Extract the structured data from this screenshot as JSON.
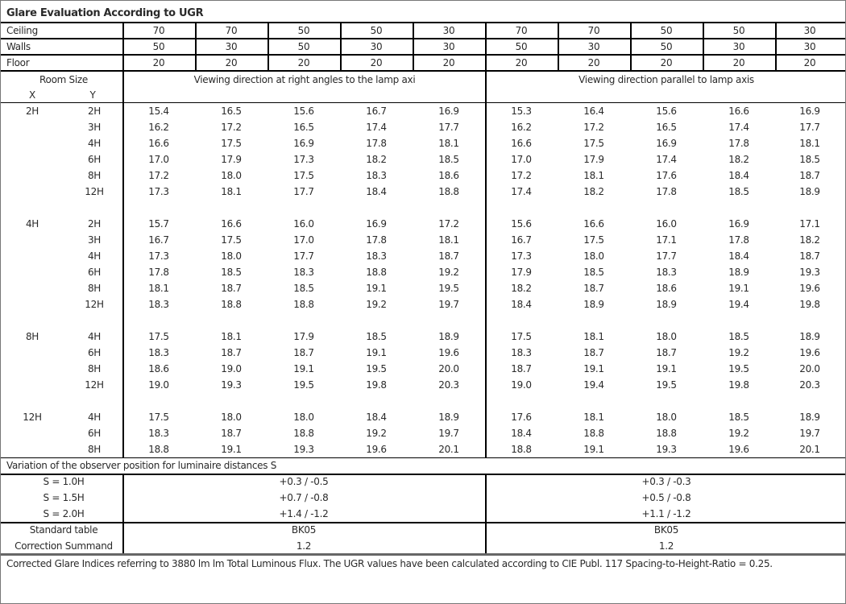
{
  "title": "Glare Evaluation According to UGR",
  "reflectances": {
    "ceiling": {
      "label": "Ceiling",
      "values": [
        "70",
        "70",
        "50",
        "50",
        "30",
        "70",
        "70",
        "50",
        "50",
        "30"
      ]
    },
    "walls": {
      "label": "Walls",
      "values": [
        "50",
        "30",
        "50",
        "30",
        "30",
        "50",
        "30",
        "50",
        "30",
        "30"
      ]
    },
    "floor": {
      "label": "Floor",
      "values": [
        "20",
        "20",
        "20",
        "20",
        "20",
        "20",
        "20",
        "20",
        "20",
        "20"
      ]
    }
  },
  "header": {
    "room_size": "Room Size",
    "x_label": "X",
    "y_label": "Y",
    "perpendicular": "Viewing direction at right angles to the lamp axi",
    "parallel": "Viewing direction parallel to lamp axis"
  },
  "groups": [
    {
      "x": "2H",
      "rows": [
        {
          "y": "2H",
          "perp": [
            "15.4",
            "16.5",
            "15.6",
            "16.7",
            "16.9"
          ],
          "par": [
            "15.3",
            "16.4",
            "15.6",
            "16.6",
            "16.9"
          ]
        },
        {
          "y": "3H",
          "perp": [
            "16.2",
            "17.2",
            "16.5",
            "17.4",
            "17.7"
          ],
          "par": [
            "16.2",
            "17.2",
            "16.5",
            "17.4",
            "17.7"
          ]
        },
        {
          "y": "4H",
          "perp": [
            "16.6",
            "17.5",
            "16.9",
            "17.8",
            "18.1"
          ],
          "par": [
            "16.6",
            "17.5",
            "16.9",
            "17.8",
            "18.1"
          ]
        },
        {
          "y": "6H",
          "perp": [
            "17.0",
            "17.9",
            "17.3",
            "18.2",
            "18.5"
          ],
          "par": [
            "17.0",
            "17.9",
            "17.4",
            "18.2",
            "18.5"
          ]
        },
        {
          "y": "8H",
          "perp": [
            "17.2",
            "18.0",
            "17.5",
            "18.3",
            "18.6"
          ],
          "par": [
            "17.2",
            "18.1",
            "17.6",
            "18.4",
            "18.7"
          ]
        },
        {
          "y": "12H",
          "perp": [
            "17.3",
            "18.1",
            "17.7",
            "18.4",
            "18.8"
          ],
          "par": [
            "17.4",
            "18.2",
            "17.8",
            "18.5",
            "18.9"
          ]
        }
      ]
    },
    {
      "x": "4H",
      "rows": [
        {
          "y": "2H",
          "perp": [
            "15.7",
            "16.6",
            "16.0",
            "16.9",
            "17.2"
          ],
          "par": [
            "15.6",
            "16.6",
            "16.0",
            "16.9",
            "17.1"
          ]
        },
        {
          "y": "3H",
          "perp": [
            "16.7",
            "17.5",
            "17.0",
            "17.8",
            "18.1"
          ],
          "par": [
            "16.7",
            "17.5",
            "17.1",
            "17.8",
            "18.2"
          ]
        },
        {
          "y": "4H",
          "perp": [
            "17.3",
            "18.0",
            "17.7",
            "18.3",
            "18.7"
          ],
          "par": [
            "17.3",
            "18.0",
            "17.7",
            "18.4",
            "18.7"
          ]
        },
        {
          "y": "6H",
          "perp": [
            "17.8",
            "18.5",
            "18.3",
            "18.8",
            "19.2"
          ],
          "par": [
            "17.9",
            "18.5",
            "18.3",
            "18.9",
            "19.3"
          ]
        },
        {
          "y": "8H",
          "perp": [
            "18.1",
            "18.7",
            "18.5",
            "19.1",
            "19.5"
          ],
          "par": [
            "18.2",
            "18.7",
            "18.6",
            "19.1",
            "19.6"
          ]
        },
        {
          "y": "12H",
          "perp": [
            "18.3",
            "18.8",
            "18.8",
            "19.2",
            "19.7"
          ],
          "par": [
            "18.4",
            "18.9",
            "18.9",
            "19.4",
            "19.8"
          ]
        }
      ]
    },
    {
      "x": "8H",
      "rows": [
        {
          "y": "4H",
          "perp": [
            "17.5",
            "18.1",
            "17.9",
            "18.5",
            "18.9"
          ],
          "par": [
            "17.5",
            "18.1",
            "18.0",
            "18.5",
            "18.9"
          ]
        },
        {
          "y": "6H",
          "perp": [
            "18.3",
            "18.7",
            "18.7",
            "19.1",
            "19.6"
          ],
          "par": [
            "18.3",
            "18.7",
            "18.7",
            "19.2",
            "19.6"
          ]
        },
        {
          "y": "8H",
          "perp": [
            "18.6",
            "19.0",
            "19.1",
            "19.5",
            "20.0"
          ],
          "par": [
            "18.7",
            "19.1",
            "19.1",
            "19.5",
            "20.0"
          ]
        },
        {
          "y": "12H",
          "perp": [
            "19.0",
            "19.3",
            "19.5",
            "19.8",
            "20.3"
          ],
          "par": [
            "19.0",
            "19.4",
            "19.5",
            "19.8",
            "20.3"
          ]
        }
      ]
    },
    {
      "x": "12H",
      "rows": [
        {
          "y": "4H",
          "perp": [
            "17.5",
            "18.0",
            "18.0",
            "18.4",
            "18.9"
          ],
          "par": [
            "17.6",
            "18.1",
            "18.0",
            "18.5",
            "18.9"
          ]
        },
        {
          "y": "6H",
          "perp": [
            "18.3",
            "18.7",
            "18.8",
            "19.2",
            "19.7"
          ],
          "par": [
            "18.4",
            "18.8",
            "18.8",
            "19.2",
            "19.7"
          ]
        },
        {
          "y": "8H",
          "perp": [
            "18.8",
            "19.1",
            "19.3",
            "19.6",
            "20.1"
          ],
          "par": [
            "18.8",
            "19.1",
            "19.3",
            "19.6",
            "20.1"
          ]
        }
      ]
    }
  ],
  "variation": {
    "label": "Variation of the observer position for luminaire distances S",
    "rows": [
      {
        "s": "S = 1.0H",
        "perp": "+0.3 / -0.5",
        "par": "+0.3 / -0.3"
      },
      {
        "s": "S = 1.5H",
        "perp": "+0.7 / -0.8",
        "par": "+0.5 / -0.8"
      },
      {
        "s": "S = 2.0H",
        "perp": "+1.4 / -1.2",
        "par": "+1.1 / -1.2"
      }
    ]
  },
  "standard": {
    "table_label": "Standard table",
    "table_perp": "BK05",
    "table_par": "BK05",
    "summand_label": "Correction Summand",
    "summand_perp": "1.2",
    "summand_par": "1.2"
  },
  "footer": "Corrected Glare Indices referring to 3880 lm lm Total Luminous Flux. The UGR values have been calculated according to CIE Publ. 117    Spacing-to-Height-Ratio = 0.25."
}
